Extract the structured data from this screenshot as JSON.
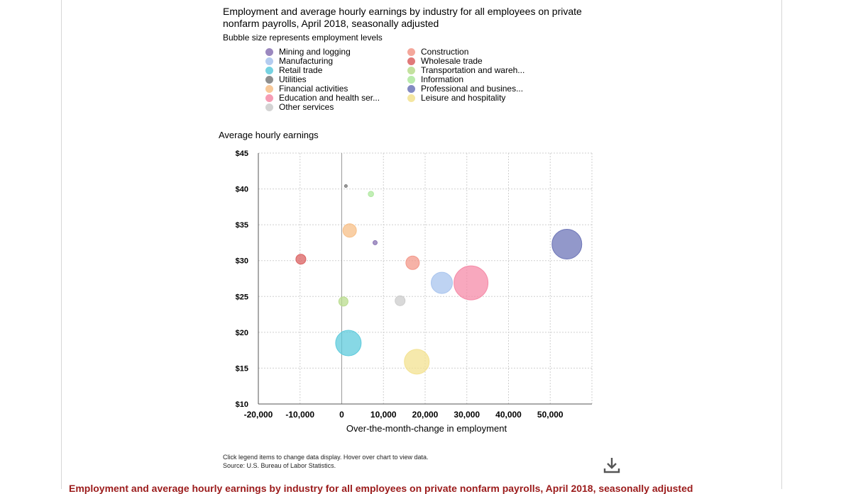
{
  "chart_data": {
    "type": "scatter",
    "title": "Employment and average hourly earnings by industry for all employees on private nonfarm payrolls, April 2018, seasonally adjusted",
    "subtitle": "Bubble size represents employment levels",
    "xlabel": "Over-the-month-change in employment",
    "ylabel": "Average hourly earnings",
    "xlim": [
      -20000,
      60000
    ],
    "ylim": [
      10,
      45
    ],
    "x_ticks": [
      -20000,
      -10000,
      0,
      10000,
      20000,
      30000,
      40000,
      50000
    ],
    "x_tick_labels": [
      "-20,000",
      "-10,000",
      "0",
      "10,000",
      "20,000",
      "30,000",
      "40,000",
      "50,000"
    ],
    "y_ticks": [
      10,
      15,
      20,
      25,
      30,
      35,
      40,
      45
    ],
    "y_tick_labels": [
      "$10",
      "$15",
      "$20",
      "$25",
      "$30",
      "$35",
      "$40",
      "$45"
    ],
    "grid": true,
    "legend_position": "top",
    "series": [
      {
        "name": "Mining and logging",
        "x": 8000,
        "y": 32.5,
        "size": 3,
        "color": "#8a74b4"
      },
      {
        "name": "Construction",
        "x": 17000,
        "y": 29.7,
        "size": 9.5,
        "color": "#f3988a"
      },
      {
        "name": "Manufacturing",
        "x": 24000,
        "y": 26.9,
        "size": 15,
        "color": "#a8c4ee"
      },
      {
        "name": "Wholesale trade",
        "x": -9800,
        "y": 30.2,
        "size": 7,
        "color": "#db6262"
      },
      {
        "name": "Retail trade",
        "x": 1600,
        "y": 18.5,
        "size": 18,
        "color": "#5fcbdc"
      },
      {
        "name": "Transportation and wareh...",
        "x": 400,
        "y": 24.3,
        "size": 6.5,
        "color": "#b9dc8e"
      },
      {
        "name": "Utilities",
        "x": 1000,
        "y": 40.4,
        "size": 2,
        "color": "#7b7b7b"
      },
      {
        "name": "Information",
        "x": 7000,
        "y": 39.3,
        "size": 3.8,
        "color": "#aee89e"
      },
      {
        "name": "Financial activities",
        "x": 1900,
        "y": 34.2,
        "size": 9.5,
        "color": "#f7bf87"
      },
      {
        "name": "Professional and busines...",
        "x": 54000,
        "y": 32.3,
        "size": 21,
        "color": "#6e76b8"
      },
      {
        "name": "Education and health ser...",
        "x": 31000,
        "y": 26.9,
        "size": 24,
        "color": "#f58ba8"
      },
      {
        "name": "Leisure and hospitality",
        "x": 18000,
        "y": 15.9,
        "size": 17.5,
        "color": "#f3e290"
      },
      {
        "name": "Other services",
        "x": 14000,
        "y": 24.4,
        "size": 7,
        "color": "#cccccc"
      }
    ],
    "legend_order": [
      0,
      1,
      2,
      3,
      4,
      5,
      6,
      7,
      8,
      9,
      10,
      11,
      12
    ]
  },
  "notes": {
    "line1": "Click legend items to change data display. Hover over chart to view data.",
    "line2": "Source: U.S. Bureau of Labor Statistics."
  },
  "download_icon": "download-icon",
  "table_caption": "Employment and average hourly earnings by industry for all employees on private nonfarm payrolls, April 2018, seasonally adjusted"
}
